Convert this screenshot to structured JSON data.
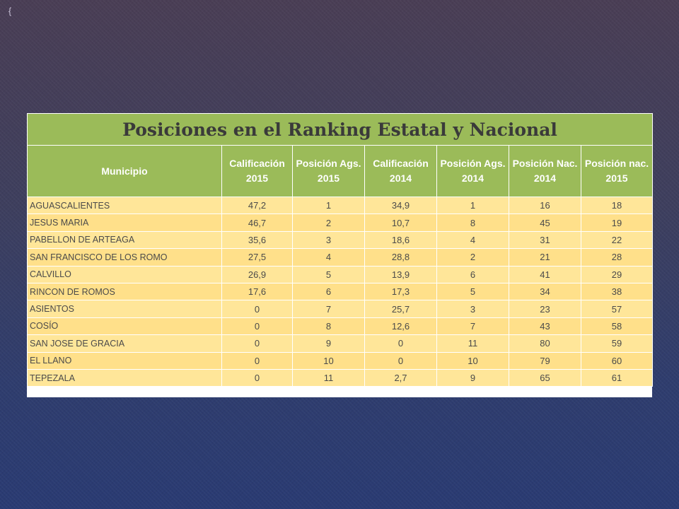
{
  "table": {
    "title": "Posiciones en el Ranking Estatal y Nacional",
    "headers": [
      {
        "line1": "Municipio",
        "line2": ""
      },
      {
        "line1": "Calificación",
        "line2": "2015"
      },
      {
        "line1": "Posición Ags.",
        "line2": "2015"
      },
      {
        "line1": "Calificación",
        "line2": "2014"
      },
      {
        "line1": "Posición Ags.",
        "line2": "2014"
      },
      {
        "line1": "Posición Nac.",
        "line2": "2014"
      },
      {
        "line1": "Posición nac.",
        "line2": "2015"
      }
    ],
    "rows": [
      [
        "AGUASCALIENTES",
        "47,2",
        "1",
        "34,9",
        "1",
        "16",
        "18"
      ],
      [
        "JESUS MARIA",
        "46,7",
        "2",
        "10,7",
        "8",
        "45",
        "19"
      ],
      [
        "PABELLON DE ARTEAGA",
        "35,6",
        "3",
        "18,6",
        "4",
        "31",
        "22"
      ],
      [
        "SAN FRANCISCO DE LOS ROMO",
        "27,5",
        "4",
        "28,8",
        "2",
        "21",
        "28"
      ],
      [
        "CALVILLO",
        "26,9",
        "5",
        "13,9",
        "6",
        "41",
        "29"
      ],
      [
        "RINCON DE ROMOS",
        "17,6",
        "6",
        "17,3",
        "5",
        "34",
        "38"
      ],
      [
        "ASIENTOS",
        "0",
        "7",
        "25,7",
        "3",
        "23",
        "57"
      ],
      [
        "COSÍO",
        "0",
        "8",
        "12,6",
        "7",
        "43",
        "58"
      ],
      [
        "SAN JOSE DE GRACIA",
        "0",
        "9",
        "0",
        "11",
        "80",
        "59"
      ],
      [
        "EL LLANO",
        "0",
        "10",
        "0",
        "10",
        "79",
        "60"
      ],
      [
        "TEPEZALA",
        "0",
        "11",
        "2,7",
        "9",
        "65",
        "61"
      ]
    ]
  },
  "colors": {
    "header_green": "#9bbb59",
    "row_yellow": "#ffe699",
    "background": "#3a3d63"
  },
  "icons": {
    "corner": "corner-bracket-icon"
  }
}
